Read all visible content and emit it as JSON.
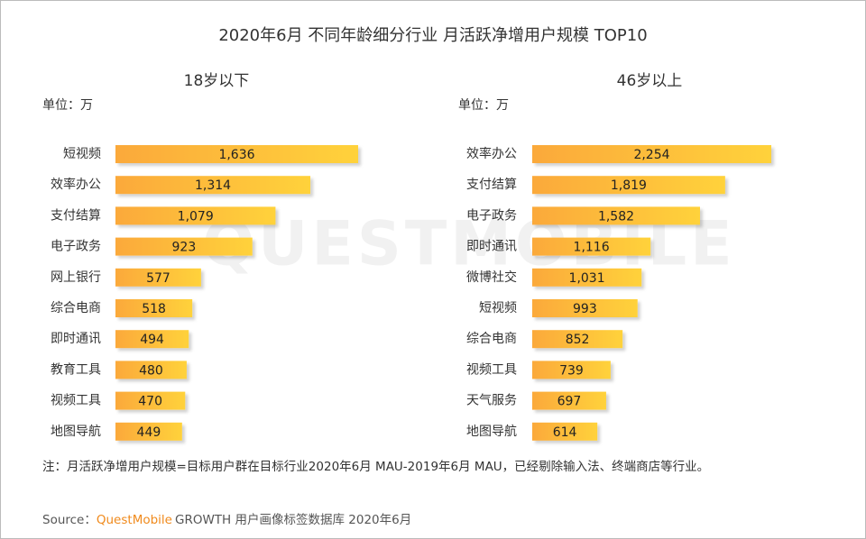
{
  "title": "2020年6月 不同年龄细分行业 月活跃净增用户规模 TOP10",
  "watermark": "QUESTMOBILE",
  "chart_data": [
    {
      "type": "bar",
      "title": "18岁以下",
      "unit": "单位：万",
      "color": [
        "#fba93a",
        "#ffd23a"
      ],
      "categories": [
        "短视频",
        "效率办公",
        "支付结算",
        "电子政务",
        "网上银行",
        "综合电商",
        "即时通讯",
        "教育工具",
        "视频工具",
        "地图导航"
      ],
      "values": [
        1636,
        1314,
        1079,
        923,
        577,
        518,
        494,
        480,
        470,
        449
      ],
      "value_labels": [
        "1,636",
        "1,314",
        "1,079",
        "923",
        "577",
        "518",
        "494",
        "480",
        "470",
        "449"
      ]
    },
    {
      "type": "bar",
      "title": "46岁以上",
      "unit": "单位：万",
      "color": [
        "#fba93a",
        "#ffd23a"
      ],
      "categories": [
        "效率办公",
        "支付结算",
        "电子政务",
        "即时通讯",
        "微博社交",
        "短视频",
        "综合电商",
        "视频工具",
        "天气服务",
        "地图导航"
      ],
      "values": [
        2254,
        1819,
        1582,
        1116,
        1031,
        993,
        852,
        739,
        697,
        614
      ],
      "value_labels": [
        "2,254",
        "1,819",
        "1,582",
        "1,116",
        "1,031",
        "993",
        "852",
        "739",
        "697",
        "614"
      ]
    }
  ],
  "note": "注：月活跃净增用户规模=目标用户群在目标行业2020年6月 MAU-2019年6月 MAU，已经剔除输入法、终端商店等行业。",
  "source": {
    "prefix": "Source：",
    "brand": "QuestMobile",
    "rest": "GROWTH 用户画像标签数据库 2020年6月"
  }
}
